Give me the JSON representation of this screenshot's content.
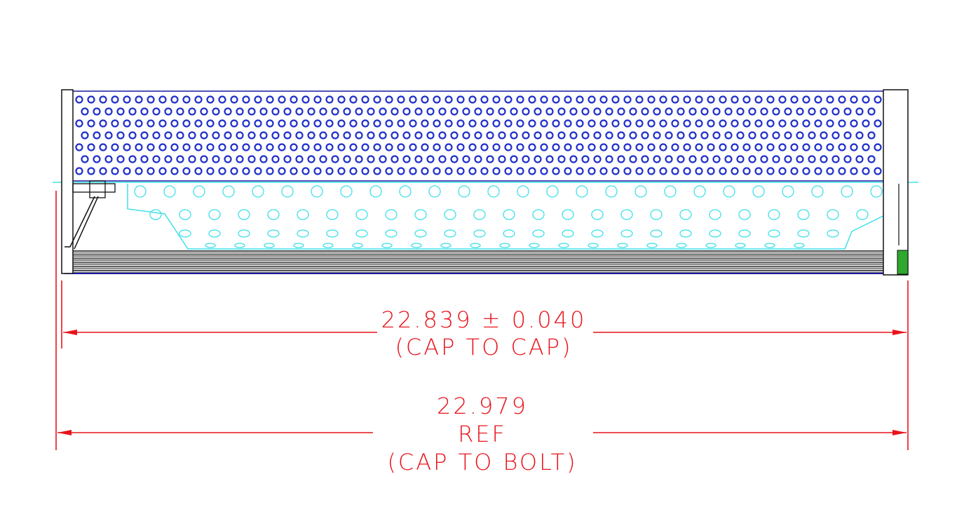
{
  "dimensions": [
    {
      "value": "22.839 ± 0.040",
      "note": "(CAP TO CAP)"
    },
    {
      "value": "22.979",
      "qualifier": "REF",
      "note": "(CAP TO BOLT)"
    }
  ]
}
